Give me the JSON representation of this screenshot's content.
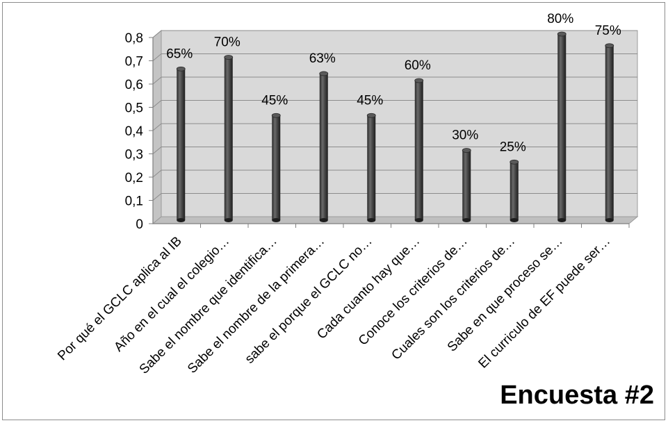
{
  "chart_data": {
    "type": "bar",
    "style": "3d-cylinder",
    "categories": [
      "Por qué el GCLC aplica al IB",
      "Año en el cual el colegio…",
      "Sabe el nombre que identifica…",
      "Sabe el nombre de la primera…",
      "sabe el porque el GCLC no…",
      "Cada cuanto hay que…",
      "Conoce los criterios de…",
      "Cuales son los criterios de…",
      "Sabe en que proceso se…",
      "El curriculo de EF puede ser…"
    ],
    "values": [
      0.65,
      0.7,
      0.45,
      0.63,
      0.45,
      0.6,
      0.3,
      0.25,
      0.8,
      0.75
    ],
    "data_labels": [
      "65%",
      "70%",
      "45%",
      "63%",
      "45%",
      "60%",
      "30%",
      "25%",
      "80%",
      "75%"
    ],
    "y_ticks": [
      "0",
      "0,1",
      "0,2",
      "0,3",
      "0,4",
      "0,5",
      "0,6",
      "0,7",
      "0,8"
    ],
    "ylim": [
      0,
      0.8
    ],
    "grid": true,
    "legend": "none",
    "title": "",
    "annotation": "Encuesta #2",
    "colors": {
      "bar": "#3c3c3c",
      "bar_highlight": "#6a6a6a",
      "wall": "#d9d9d9",
      "floor": "#bfbfbf",
      "gridline": "#8c8c8c"
    }
  }
}
